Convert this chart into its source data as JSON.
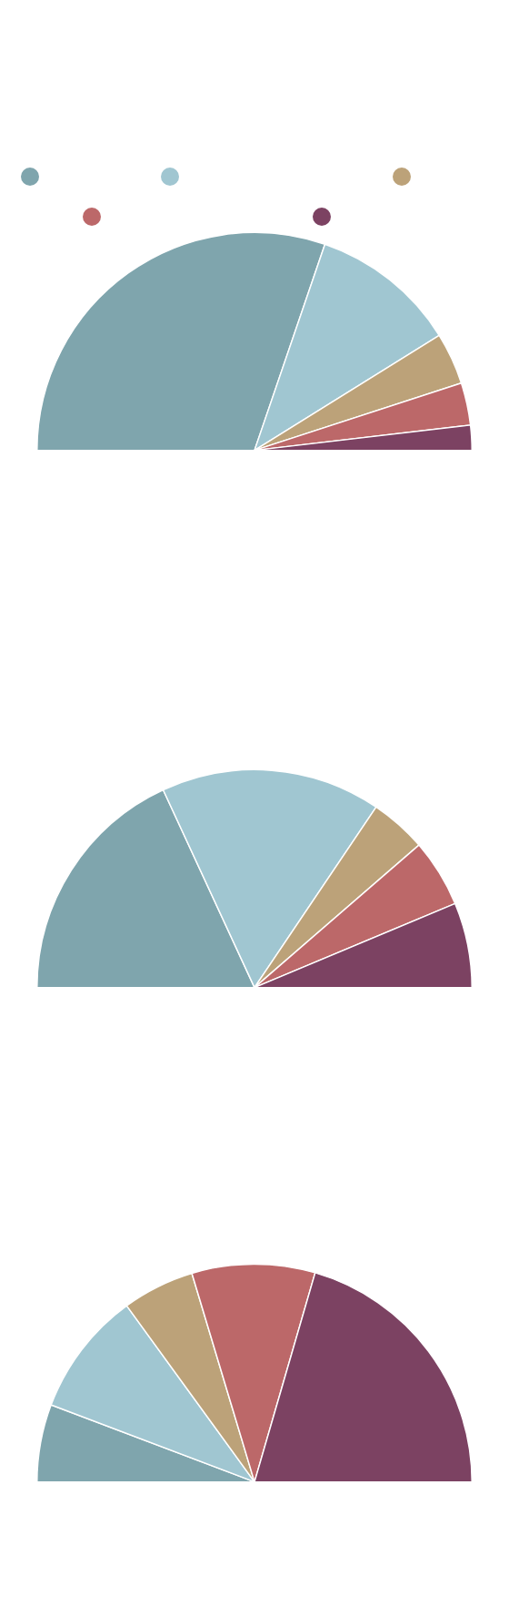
{
  "chart_data": [
    {
      "type": "pie",
      "categories": [
        null,
        null,
        null,
        null,
        null
      ],
      "values": [
        60.5,
        21.8,
        7.7,
        6.3,
        3.7
      ],
      "colors": [
        "#7fa5ad",
        "#a0c6d1",
        "#bca279",
        "#bc6869",
        "#7c4262"
      ]
    },
    {
      "type": "pie",
      "categories": [
        null,
        null,
        null,
        null,
        null
      ],
      "values": [
        36.2,
        32.7,
        8.4,
        10.1,
        12.6
      ],
      "colors": [
        "#7fa5ad",
        "#a0c6d1",
        "#bca279",
        "#bc6869",
        "#7c4262"
      ]
    },
    {
      "type": "pie",
      "categories": [
        null,
        null,
        null,
        null,
        null
      ],
      "values": [
        11.5,
        18.5,
        10.7,
        18.3,
        41.0
      ],
      "colors": [
        "#7fa5ad",
        "#a0c6d1",
        "#bca279",
        "#bc6869",
        "#7c4262"
      ]
    }
  ]
}
